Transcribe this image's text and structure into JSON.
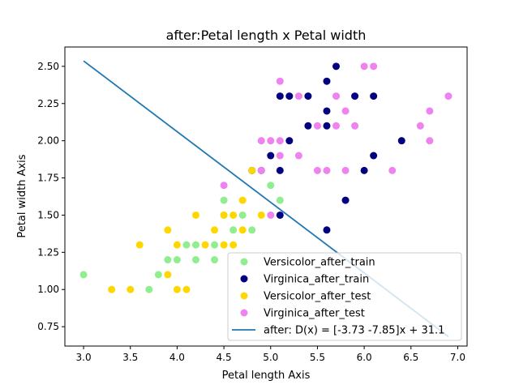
{
  "chart_data": {
    "type": "scatter",
    "title": "after:Petal length x Petal width",
    "xlabel": "Petal length Axis",
    "ylabel": "Petal width Axis",
    "xlim": [
      2.8,
      7.1
    ],
    "ylim": [
      0.62,
      2.63
    ],
    "x_ticks": [
      "3.0",
      "3.5",
      "4.0",
      "4.5",
      "5.0",
      "5.5",
      "6.0",
      "6.5",
      "7.0"
    ],
    "y_ticks": [
      "0.75",
      "1.00",
      "1.25",
      "1.50",
      "1.75",
      "2.00",
      "2.25",
      "2.50"
    ],
    "grid": false,
    "legend_position": "lower-right",
    "series": [
      {
        "name": "Versicolor_after_train",
        "color": "#90ee90",
        "points": [
          [
            3.0,
            1.1
          ],
          [
            3.7,
            1.0
          ],
          [
            3.8,
            1.1
          ],
          [
            3.9,
            1.2
          ],
          [
            4.0,
            1.2
          ],
          [
            4.1,
            1.3
          ],
          [
            4.2,
            1.3
          ],
          [
            4.2,
            1.2
          ],
          [
            4.4,
            1.2
          ],
          [
            4.4,
            1.3
          ],
          [
            4.5,
            1.6
          ],
          [
            4.5,
            1.5
          ],
          [
            4.6,
            1.4
          ],
          [
            4.7,
            1.5
          ],
          [
            4.8,
            1.4
          ],
          [
            4.8,
            1.8
          ],
          [
            5.0,
            1.7
          ],
          [
            5.1,
            1.6
          ]
        ]
      },
      {
        "name": "Virginica_after_train",
        "color": "#000080",
        "points": [
          [
            4.8,
            1.8
          ],
          [
            4.9,
            1.8
          ],
          [
            5.0,
            1.9
          ],
          [
            5.1,
            2.3
          ],
          [
            5.1,
            1.8
          ],
          [
            5.1,
            1.5
          ],
          [
            5.2,
            2.3
          ],
          [
            5.2,
            2.0
          ],
          [
            5.4,
            2.3
          ],
          [
            5.4,
            2.1
          ],
          [
            5.6,
            2.4
          ],
          [
            5.6,
            2.2
          ],
          [
            5.6,
            2.1
          ],
          [
            5.6,
            1.4
          ],
          [
            5.7,
            2.5
          ],
          [
            5.8,
            1.6
          ],
          [
            5.9,
            2.3
          ],
          [
            6.0,
            1.8
          ],
          [
            6.1,
            2.3
          ],
          [
            6.1,
            1.9
          ],
          [
            6.4,
            2.0
          ]
        ]
      },
      {
        "name": "Versicolor_after_test",
        "color": "#ffd700",
        "points": [
          [
            3.3,
            1.0
          ],
          [
            3.5,
            1.0
          ],
          [
            3.6,
            1.3
          ],
          [
            3.9,
            1.4
          ],
          [
            3.9,
            1.1
          ],
          [
            4.0,
            1.3
          ],
          [
            4.0,
            1.0
          ],
          [
            4.1,
            1.0
          ],
          [
            4.2,
            1.5
          ],
          [
            4.3,
            1.3
          ],
          [
            4.4,
            1.4
          ],
          [
            4.5,
            1.5
          ],
          [
            4.5,
            1.3
          ],
          [
            4.6,
            1.5
          ],
          [
            4.6,
            1.3
          ],
          [
            4.7,
            1.6
          ],
          [
            4.7,
            1.4
          ],
          [
            4.8,
            1.8
          ],
          [
            4.9,
            1.5
          ]
        ]
      },
      {
        "name": "Virginica_after_test",
        "color": "#ee82ee",
        "points": [
          [
            4.5,
            1.7
          ],
          [
            4.9,
            2.0
          ],
          [
            4.9,
            1.8
          ],
          [
            5.0,
            2.0
          ],
          [
            5.0,
            1.5
          ],
          [
            5.1,
            2.4
          ],
          [
            5.1,
            2.0
          ],
          [
            5.1,
            1.9
          ],
          [
            5.3,
            2.3
          ],
          [
            5.3,
            1.9
          ],
          [
            5.5,
            2.1
          ],
          [
            5.5,
            1.8
          ],
          [
            5.6,
            1.8
          ],
          [
            5.7,
            2.3
          ],
          [
            5.7,
            2.1
          ],
          [
            5.8,
            2.2
          ],
          [
            5.8,
            1.8
          ],
          [
            5.9,
            2.1
          ],
          [
            6.0,
            2.5
          ],
          [
            6.1,
            2.5
          ],
          [
            6.3,
            1.8
          ],
          [
            6.6,
            2.1
          ],
          [
            6.7,
            2.2
          ],
          [
            6.7,
            2.0
          ],
          [
            6.9,
            2.3
          ]
        ]
      }
    ],
    "line": {
      "name": "after: D(x) = [-3.73 -7.85]x + 31.1",
      "color": "#1f77b4",
      "w": [
        -3.73,
        -7.85
      ],
      "b": 31.1,
      "x_range": [
        3.0,
        6.9
      ]
    }
  }
}
